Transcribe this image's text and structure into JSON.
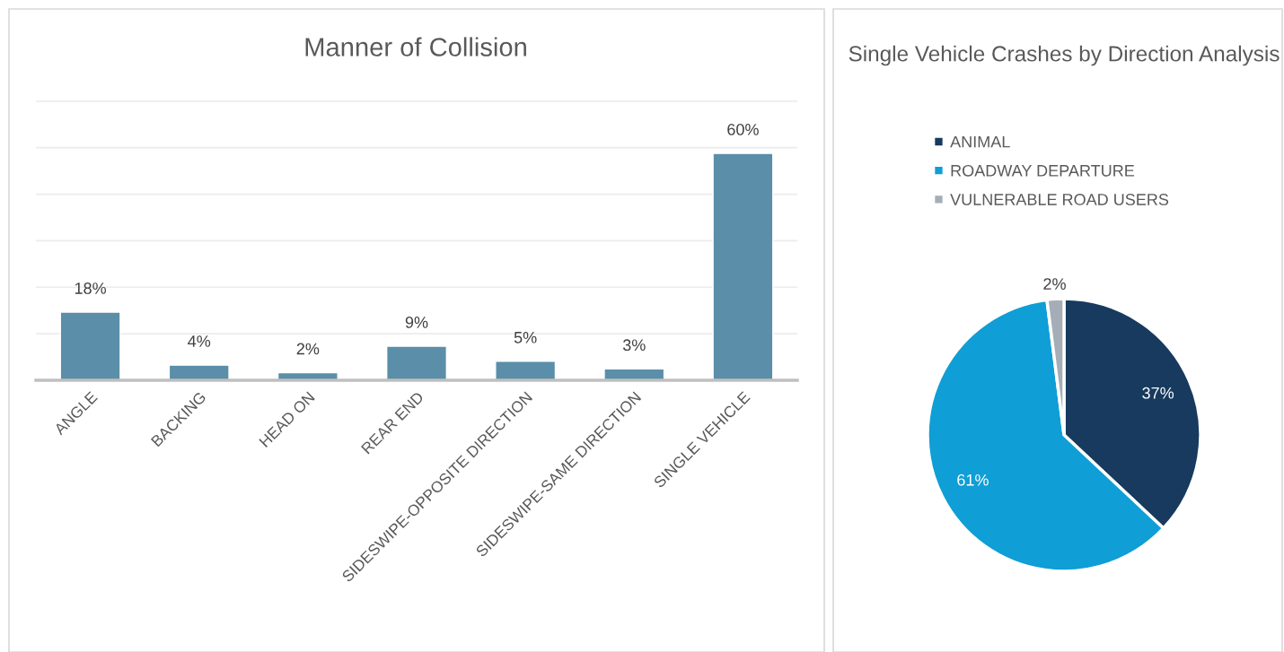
{
  "chart_data": [
    {
      "type": "bar",
      "title": "Manner of Collision",
      "categories": [
        "ANGLE",
        "BACKING",
        "HEAD ON",
        "REAR END",
        "SIDESWIPE-OPPOSITE DIRECTION",
        "SIDESWIPE-SAME DIRECTION",
        "SINGLE VEHICLE"
      ],
      "values": [
        18,
        4,
        2,
        9,
        5,
        3,
        60
      ],
      "color": "#5a8ea9",
      "value_labels": [
        "18%",
        "4%",
        "2%",
        "9%",
        "5%",
        "3%",
        "60%"
      ],
      "ylim": [
        0,
        74
      ],
      "yticks": [
        {
          "value": 12.3,
          "label": null
        },
        {
          "value": 24.6,
          "label": null
        },
        {
          "value": 36.9,
          "label": null
        },
        {
          "value": 49.2,
          "label": null
        },
        {
          "value": 61.5,
          "label": null
        },
        {
          "value": 73.8,
          "label": null
        }
      ],
      "grid": "y",
      "tick_labels": "x"
    },
    {
      "type": "pie",
      "title": "Single Vehicle Crashes by Direction Analysis",
      "categories": [
        "ANIMAL",
        "ROADWAY DEPARTURE",
        "VULNERABLE ROAD USERS"
      ],
      "values": [
        37,
        61,
        2
      ],
      "colors": [
        "#173a5e",
        "#0f9ed5",
        "#a5aeb6"
      ],
      "value_labels": [
        "37%",
        "61%",
        "2%"
      ],
      "legend": "top left"
    }
  ]
}
